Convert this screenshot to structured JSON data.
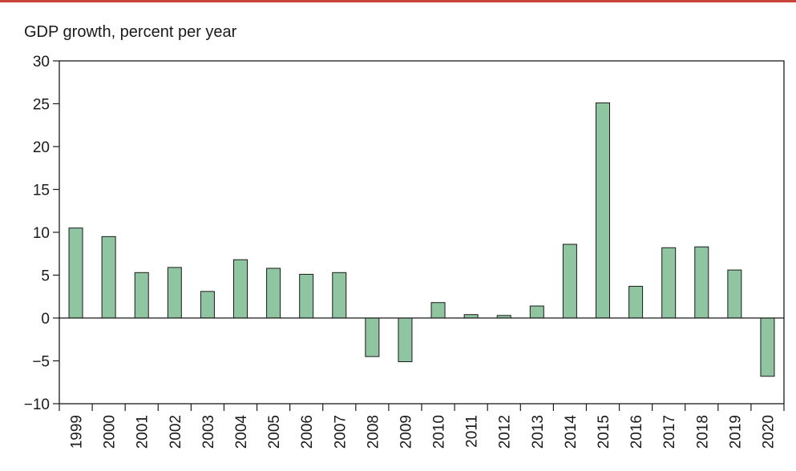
{
  "chart_data": {
    "type": "bar",
    "title": "",
    "xlabel": "",
    "ylabel": "GDP growth, percent per year",
    "ylim": [
      -10,
      30
    ],
    "yticks": [
      30,
      25,
      20,
      15,
      10,
      5,
      0,
      -5,
      -10
    ],
    "ytick_labels": [
      "30",
      "25",
      "20",
      "15",
      "10",
      "5",
      "0",
      "−5",
      "−10"
    ],
    "grid": false,
    "legend": "none",
    "categories": [
      "1999",
      "2000",
      "2001",
      "2002",
      "2003",
      "2004",
      "2005",
      "2006",
      "2007",
      "2008",
      "2009",
      "2010",
      "2011",
      "2012",
      "2013",
      "2014",
      "2015",
      "2016",
      "2017",
      "2018",
      "2019",
      "2020"
    ],
    "values": [
      10.5,
      9.5,
      5.3,
      5.9,
      3.1,
      6.8,
      5.8,
      5.1,
      5.3,
      -4.5,
      -5.1,
      1.8,
      0.4,
      0.3,
      1.4,
      8.6,
      25.1,
      3.7,
      8.2,
      8.3,
      5.6,
      -6.8
    ]
  },
  "colors": {
    "bar_fill": "#8fc5a0",
    "bar_stroke": "#1a1a1a",
    "top_rule": "#c8413b"
  }
}
